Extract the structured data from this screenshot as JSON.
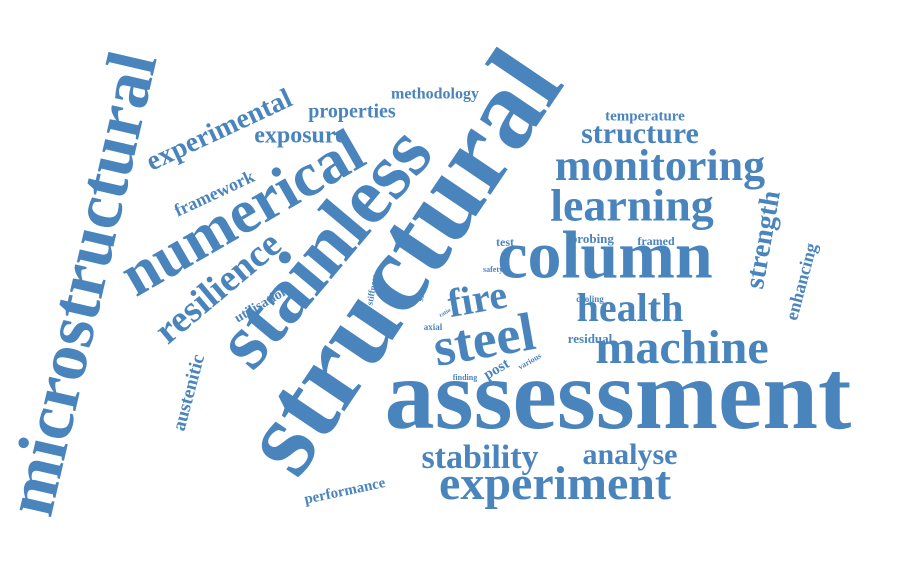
{
  "words": [
    "microstructural",
    "structural",
    "assessment",
    "stainless",
    "numerical",
    "column",
    "machine",
    "monitoring",
    "learning",
    "experiment",
    "steel",
    "fire",
    "health",
    "structure",
    "stability",
    "analyse",
    "resilience",
    "experimental",
    "exposure",
    "properties",
    "methodology",
    "temperature",
    "framework",
    "strength",
    "enhancing",
    "austenitic",
    "utilisation",
    "performance",
    "test",
    "probing",
    "framed",
    "safety",
    "stiffness",
    "site",
    "cooling",
    "axial",
    "ratio",
    "residual",
    "finding",
    "post",
    "various"
  ]
}
